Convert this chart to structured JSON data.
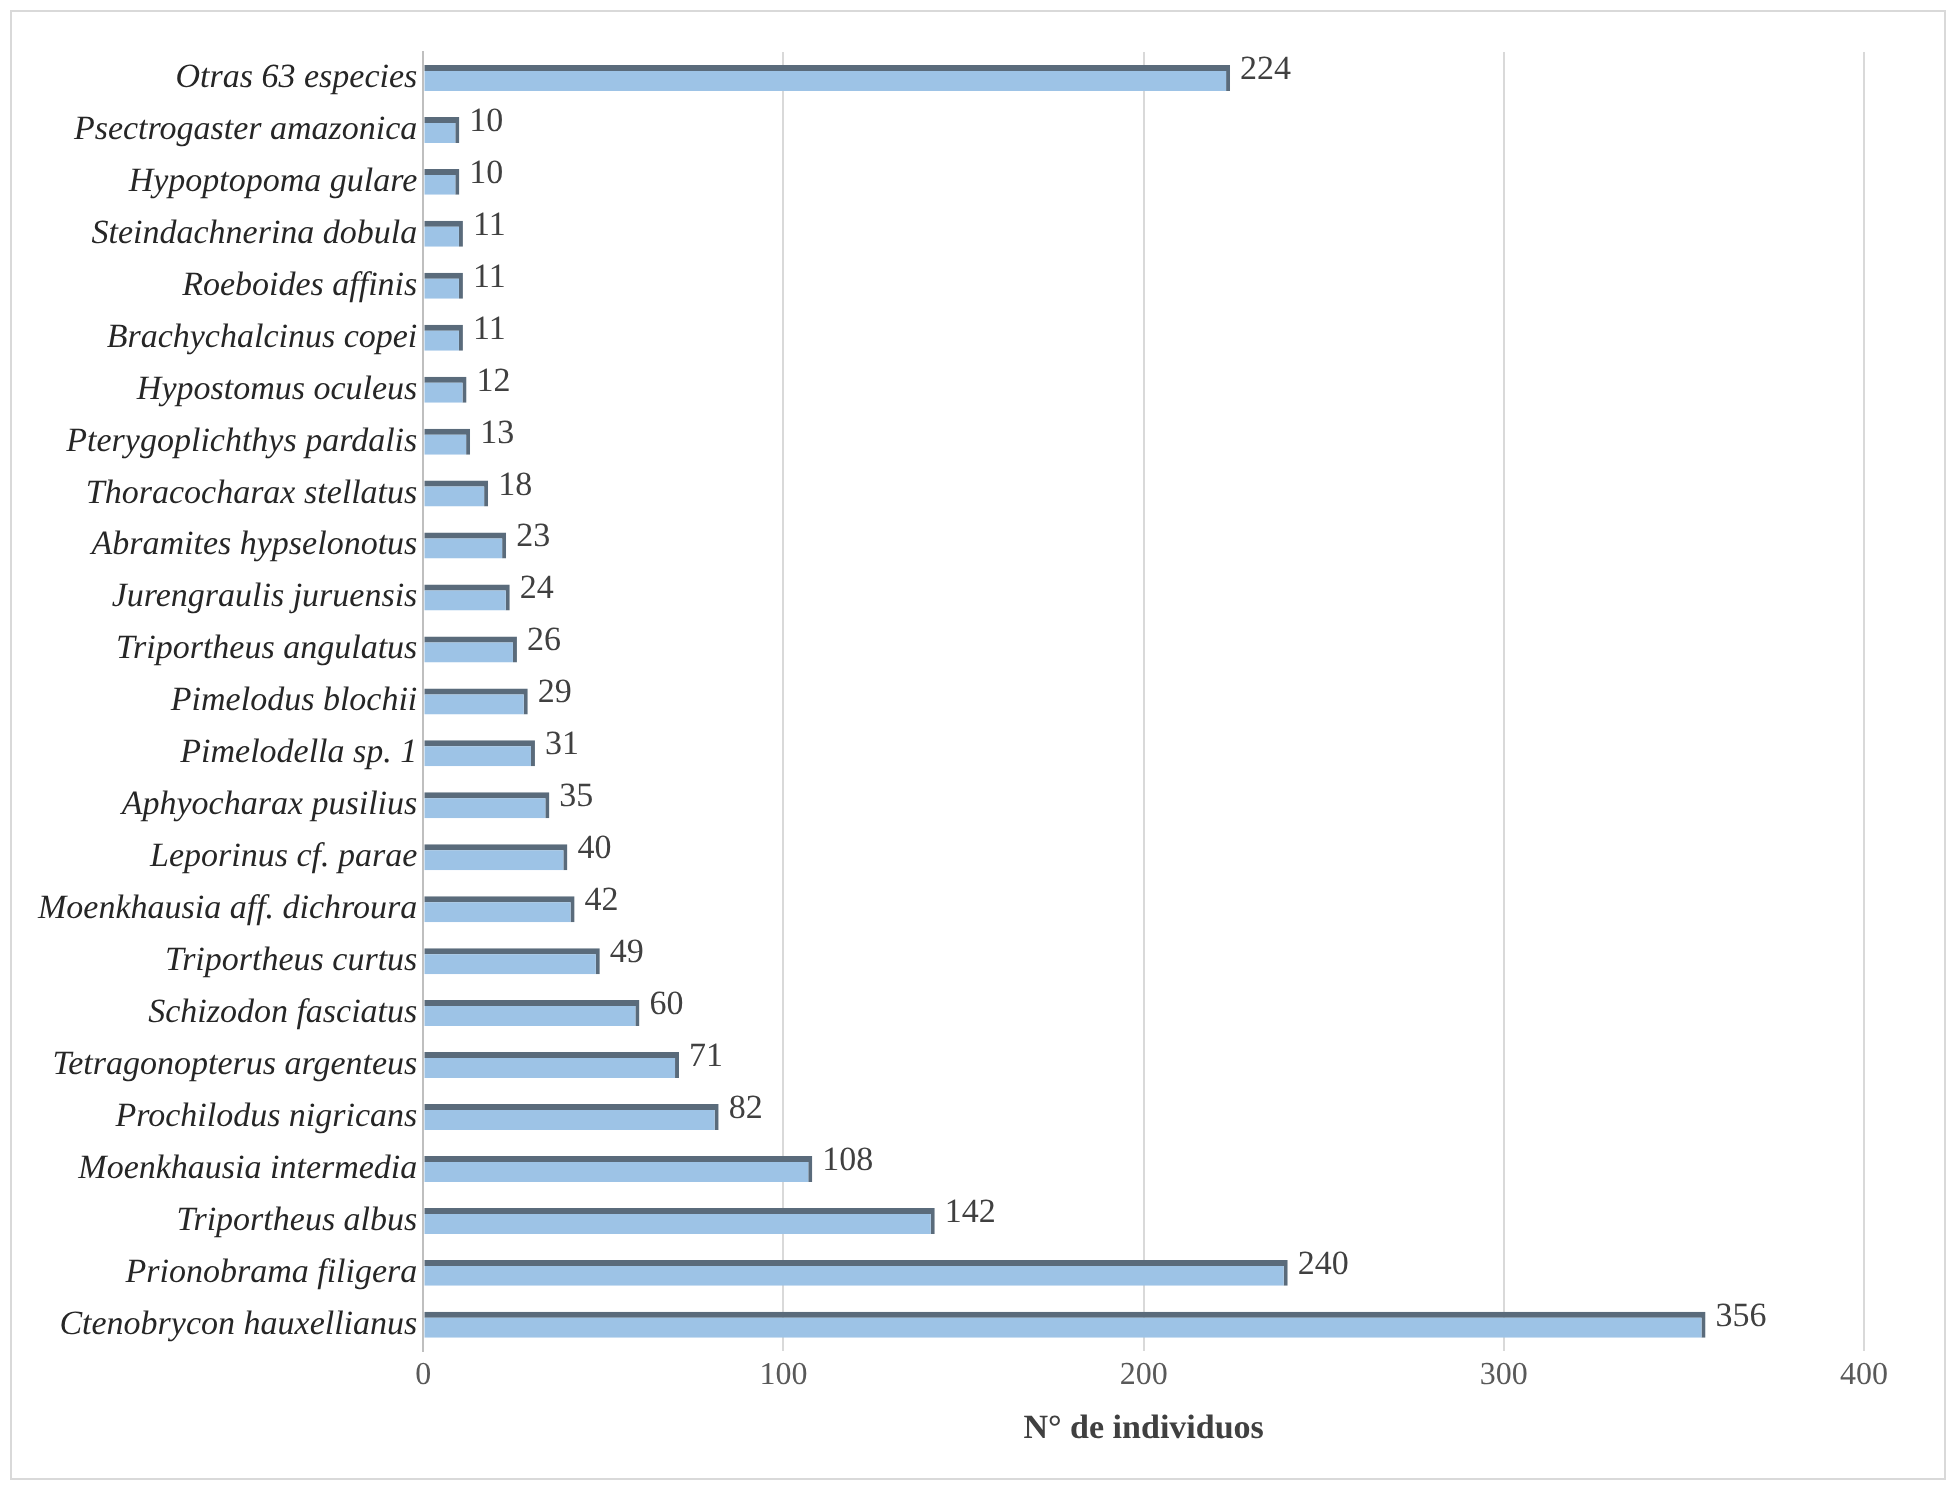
{
  "chart_data": {
    "type": "bar",
    "orientation": "horizontal",
    "xlabel": "N° de individuos",
    "categories": [
      "Otras 63 especies",
      "Psectrogaster amazonica",
      "Hypoptopoma gulare",
      "Steindachnerina dobula",
      "Roeboides affinis",
      "Brachychalcinus copei",
      "Hypostomus oculeus",
      "Pterygoplichthys pardalis",
      "Thoracocharax stellatus",
      "Abramites hypselonotus",
      "Jurengraulis juruensis",
      "Triportheus angulatus",
      "Pimelodus blochii",
      "Pimelodella sp. 1",
      "Aphyocharax pusilius",
      "Leporinus cf. parae",
      "Moenkhausia aff. dichroura",
      "Triportheus curtus",
      "Schizodon fasciatus",
      "Tetragonopterus argenteus",
      "Prochilodus nigricans",
      "Moenkhausia intermedia",
      "Triportheus albus",
      "Prionobrama filigera",
      "Ctenobrycon hauxellianus"
    ],
    "values": [
      224,
      10,
      10,
      11,
      11,
      11,
      12,
      13,
      18,
      23,
      24,
      26,
      29,
      31,
      35,
      40,
      42,
      49,
      60,
      71,
      82,
      108,
      142,
      240,
      356
    ],
    "color": "#9dc3e6",
    "xlim": [
      0,
      400
    ],
    "xticks": [
      0,
      100,
      200,
      300,
      400
    ],
    "grid": "x",
    "legend": false,
    "data_labels": true
  }
}
